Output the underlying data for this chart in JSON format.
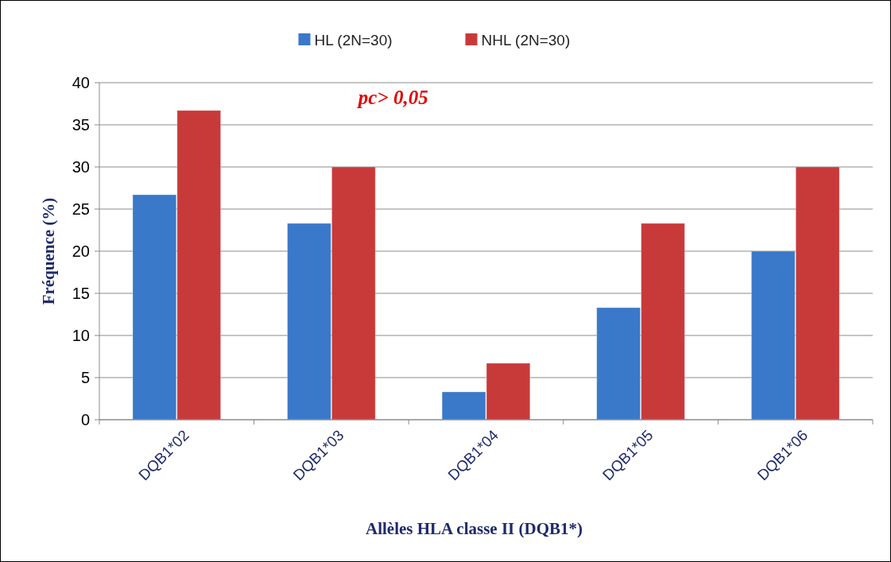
{
  "chart_data": {
    "type": "bar",
    "xlabel": "Allèles HLA classe II (DQB1*)",
    "ylabel": "Fréquence (%)",
    "categories": [
      "DQB1*02",
      "DQB1*03",
      "DQB1*04",
      "DQB1*05",
      "DQB1*06"
    ],
    "series": [
      {
        "name": "HL (2N=30)",
        "color": "#3a78c9",
        "values": [
          26.7,
          23.3,
          3.3,
          13.3,
          20
        ]
      },
      {
        "name": "NHL (2N=30)",
        "color": "#c83a3a",
        "values": [
          36.7,
          30,
          6.7,
          23.3,
          30
        ]
      }
    ],
    "ylim": [
      0,
      40
    ],
    "yticks": [
      0,
      5,
      10,
      15,
      20,
      25,
      30,
      35,
      40
    ],
    "grid": "y",
    "legend": "top",
    "annotations": [
      "pc> 0,05"
    ]
  }
}
